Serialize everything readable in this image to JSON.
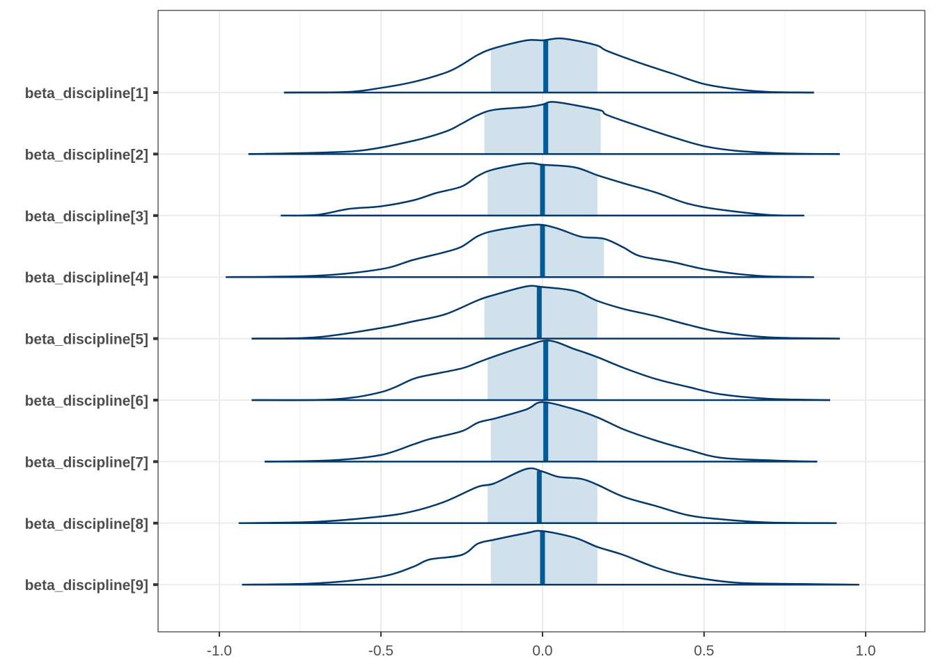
{
  "chart_data": {
    "type": "ridgeline",
    "title": "",
    "xlabel": "",
    "ylabel": "",
    "xlim": [
      -1.19,
      1.19
    ],
    "x_ticks": [
      -1.0,
      -0.5,
      0.0,
      0.5,
      1.0
    ],
    "x_tick_labels": [
      "-1.0",
      "-0.5",
      "0.0",
      "0.5",
      "1.0"
    ],
    "grid": true,
    "legend": "none",
    "colors": {
      "line": "#03396c",
      "fill": "#d1e1ec",
      "median": "#005b96",
      "grid": "#ebebeb",
      "border": "#333333"
    },
    "series": [
      {
        "name": "beta_discipline[1]",
        "median": 0.01,
        "interval": [
          -0.16,
          0.17
        ],
        "range": [
          -0.8,
          0.84
        ],
        "density": [
          [
            -0.8,
            0.0
          ],
          [
            -0.6,
            0.01
          ],
          [
            -0.5,
            0.07
          ],
          [
            -0.4,
            0.16
          ],
          [
            -0.3,
            0.3
          ],
          [
            -0.25,
            0.42
          ],
          [
            -0.2,
            0.57
          ],
          [
            -0.15,
            0.67
          ],
          [
            -0.05,
            0.79
          ],
          [
            0.0,
            0.79
          ],
          [
            0.05,
            0.82
          ],
          [
            0.1,
            0.79
          ],
          [
            0.17,
            0.71
          ],
          [
            0.2,
            0.63
          ],
          [
            0.3,
            0.45
          ],
          [
            0.4,
            0.29
          ],
          [
            0.5,
            0.13
          ],
          [
            0.6,
            0.05
          ],
          [
            0.7,
            0.01
          ],
          [
            0.84,
            0.0
          ]
        ]
      },
      {
        "name": "beta_discipline[2]",
        "median": 0.01,
        "interval": [
          -0.18,
          0.18
        ],
        "range": [
          -0.91,
          0.92
        ],
        "density": [
          [
            -0.91,
            0.0
          ],
          [
            -0.7,
            0.02
          ],
          [
            -0.55,
            0.06
          ],
          [
            -0.4,
            0.2
          ],
          [
            -0.3,
            0.34
          ],
          [
            -0.25,
            0.46
          ],
          [
            -0.2,
            0.59
          ],
          [
            -0.15,
            0.67
          ],
          [
            -0.05,
            0.71
          ],
          [
            0.0,
            0.75
          ],
          [
            0.03,
            0.79
          ],
          [
            0.1,
            0.74
          ],
          [
            0.18,
            0.66
          ],
          [
            0.2,
            0.59
          ],
          [
            0.3,
            0.42
          ],
          [
            0.4,
            0.26
          ],
          [
            0.5,
            0.12
          ],
          [
            0.6,
            0.05
          ],
          [
            0.75,
            0.01
          ],
          [
            0.92,
            0.0
          ]
        ]
      },
      {
        "name": "beta_discipline[3]",
        "median": 0.0,
        "interval": [
          -0.17,
          0.17
        ],
        "range": [
          -0.81,
          0.81
        ],
        "density": [
          [
            -0.81,
            0.0
          ],
          [
            -0.7,
            0.01
          ],
          [
            -0.6,
            0.1
          ],
          [
            -0.5,
            0.14
          ],
          [
            -0.4,
            0.23
          ],
          [
            -0.33,
            0.34
          ],
          [
            -0.25,
            0.44
          ],
          [
            -0.2,
            0.6
          ],
          [
            -0.15,
            0.7
          ],
          [
            -0.05,
            0.79
          ],
          [
            0.0,
            0.77
          ],
          [
            0.1,
            0.73
          ],
          [
            0.17,
            0.61
          ],
          [
            0.25,
            0.49
          ],
          [
            0.35,
            0.35
          ],
          [
            0.45,
            0.18
          ],
          [
            0.55,
            0.09
          ],
          [
            0.7,
            0.01
          ],
          [
            0.81,
            0.0
          ]
        ]
      },
      {
        "name": "beta_discipline[4]",
        "median": 0.0,
        "interval": [
          -0.17,
          0.19
        ],
        "range": [
          -0.98,
          0.84
        ],
        "density": [
          [
            -0.98,
            0.0
          ],
          [
            -0.7,
            0.02
          ],
          [
            -0.5,
            0.12
          ],
          [
            -0.4,
            0.26
          ],
          [
            -0.3,
            0.38
          ],
          [
            -0.25,
            0.46
          ],
          [
            -0.2,
            0.62
          ],
          [
            -0.15,
            0.7
          ],
          [
            -0.05,
            0.78
          ],
          [
            0.0,
            0.79
          ],
          [
            0.05,
            0.73
          ],
          [
            0.12,
            0.61
          ],
          [
            0.19,
            0.58
          ],
          [
            0.25,
            0.45
          ],
          [
            0.3,
            0.32
          ],
          [
            0.4,
            0.23
          ],
          [
            0.5,
            0.12
          ],
          [
            0.6,
            0.05
          ],
          [
            0.7,
            0.01
          ],
          [
            0.84,
            0.0
          ]
        ]
      },
      {
        "name": "beta_discipline[5]",
        "median": -0.01,
        "interval": [
          -0.18,
          0.17
        ],
        "range": [
          -0.9,
          0.92
        ],
        "density": [
          [
            -0.9,
            0.0
          ],
          [
            -0.7,
            0.02
          ],
          [
            -0.5,
            0.16
          ],
          [
            -0.4,
            0.26
          ],
          [
            -0.3,
            0.37
          ],
          [
            -0.2,
            0.58
          ],
          [
            -0.15,
            0.66
          ],
          [
            -0.05,
            0.79
          ],
          [
            0.0,
            0.78
          ],
          [
            0.1,
            0.72
          ],
          [
            0.17,
            0.57
          ],
          [
            0.25,
            0.45
          ],
          [
            0.35,
            0.34
          ],
          [
            0.45,
            0.21
          ],
          [
            0.55,
            0.1
          ],
          [
            0.7,
            0.02
          ],
          [
            0.92,
            0.0
          ]
        ]
      },
      {
        "name": "beta_discipline[6]",
        "median": 0.01,
        "interval": [
          -0.17,
          0.17
        ],
        "range": [
          -0.9,
          0.89
        ],
        "density": [
          [
            -0.9,
            0.0
          ],
          [
            -0.65,
            0.01
          ],
          [
            -0.5,
            0.12
          ],
          [
            -0.4,
            0.32
          ],
          [
            -0.35,
            0.38
          ],
          [
            -0.25,
            0.48
          ],
          [
            -0.2,
            0.57
          ],
          [
            -0.15,
            0.66
          ],
          [
            -0.05,
            0.82
          ],
          [
            0.02,
            0.9
          ],
          [
            0.1,
            0.77
          ],
          [
            0.17,
            0.65
          ],
          [
            0.25,
            0.49
          ],
          [
            0.35,
            0.32
          ],
          [
            0.45,
            0.2
          ],
          [
            0.55,
            0.09
          ],
          [
            0.7,
            0.02
          ],
          [
            0.89,
            0.0
          ]
        ]
      },
      {
        "name": "beta_discipline[7]",
        "median": 0.01,
        "interval": [
          -0.16,
          0.17
        ],
        "range": [
          -0.86,
          0.85
        ],
        "density": [
          [
            -0.86,
            0.0
          ],
          [
            -0.65,
            0.02
          ],
          [
            -0.5,
            0.1
          ],
          [
            -0.4,
            0.26
          ],
          [
            -0.35,
            0.34
          ],
          [
            -0.25,
            0.46
          ],
          [
            -0.2,
            0.59
          ],
          [
            -0.15,
            0.65
          ],
          [
            -0.05,
            0.79
          ],
          [
            0.0,
            0.9
          ],
          [
            0.1,
            0.79
          ],
          [
            0.17,
            0.67
          ],
          [
            0.25,
            0.49
          ],
          [
            0.35,
            0.32
          ],
          [
            0.45,
            0.18
          ],
          [
            0.55,
            0.06
          ],
          [
            0.7,
            0.02
          ],
          [
            0.85,
            0.0
          ]
        ]
      },
      {
        "name": "beta_discipline[8]",
        "median": -0.01,
        "interval": [
          -0.17,
          0.17
        ],
        "range": [
          -0.94,
          0.91
        ],
        "density": [
          [
            -0.94,
            0.0
          ],
          [
            -0.7,
            0.02
          ],
          [
            -0.5,
            0.1
          ],
          [
            -0.4,
            0.18
          ],
          [
            -0.3,
            0.33
          ],
          [
            -0.2,
            0.55
          ],
          [
            -0.15,
            0.6
          ],
          [
            -0.05,
            0.82
          ],
          [
            0.0,
            0.78
          ],
          [
            0.05,
            0.7
          ],
          [
            0.12,
            0.67
          ],
          [
            0.17,
            0.58
          ],
          [
            0.25,
            0.4
          ],
          [
            0.35,
            0.26
          ],
          [
            0.45,
            0.12
          ],
          [
            0.55,
            0.06
          ],
          [
            0.7,
            0.01
          ],
          [
            0.91,
            0.0
          ]
        ]
      },
      {
        "name": "beta_discipline[9]",
        "median": 0.0,
        "interval": [
          -0.16,
          0.17
        ],
        "range": [
          -0.93,
          0.98
        ],
        "density": [
          [
            -0.93,
            0.0
          ],
          [
            -0.7,
            0.02
          ],
          [
            -0.5,
            0.12
          ],
          [
            -0.4,
            0.27
          ],
          [
            -0.35,
            0.38
          ],
          [
            -0.25,
            0.45
          ],
          [
            -0.2,
            0.62
          ],
          [
            -0.15,
            0.68
          ],
          [
            -0.05,
            0.78
          ],
          [
            0.0,
            0.81
          ],
          [
            0.1,
            0.71
          ],
          [
            0.17,
            0.57
          ],
          [
            0.25,
            0.45
          ],
          [
            0.35,
            0.26
          ],
          [
            0.45,
            0.13
          ],
          [
            0.6,
            0.03
          ],
          [
            0.8,
            0.01
          ],
          [
            0.98,
            0.0
          ]
        ]
      }
    ]
  }
}
